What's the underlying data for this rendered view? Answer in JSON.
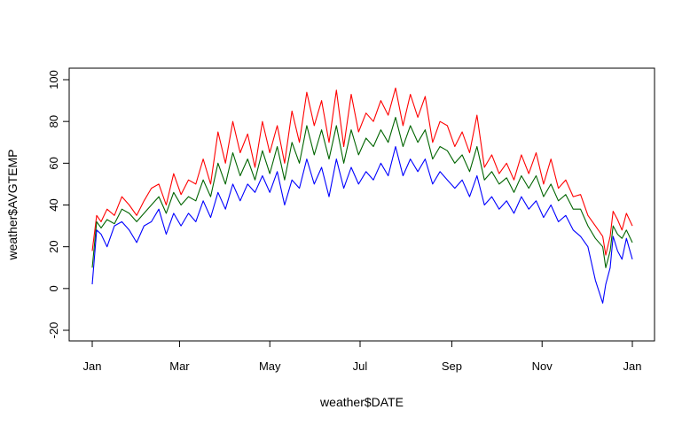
{
  "chart_data": {
    "type": "line",
    "title": "",
    "xlabel": "weather$DATE",
    "ylabel": "weather$AVGTEMP",
    "x_ticks": [
      "Jan",
      "Mar",
      "May",
      "Jul",
      "Sep",
      "Nov",
      "Jan"
    ],
    "x_tick_days": [
      0,
      59,
      120,
      181,
      243,
      304,
      365
    ],
    "y_ticks": [
      -20,
      0,
      20,
      40,
      60,
      80,
      100
    ],
    "ylim": [
      -25,
      105
    ],
    "xlim": [
      0,
      365
    ],
    "grid": false,
    "legend": "none",
    "series": [
      {
        "color": "#ff0000",
        "x_days": [
          0,
          3,
          6,
          10,
          15,
          20,
          25,
          30,
          35,
          40,
          45,
          50,
          55,
          60,
          65,
          70,
          75,
          80,
          85,
          90,
          95,
          100,
          105,
          110,
          115,
          120,
          125,
          130,
          135,
          140,
          145,
          150,
          155,
          160,
          165,
          170,
          175,
          180,
          185,
          190,
          195,
          200,
          205,
          210,
          215,
          220,
          225,
          230,
          235,
          240,
          245,
          250,
          255,
          260,
          265,
          270,
          275,
          280,
          285,
          290,
          295,
          300,
          305,
          310,
          315,
          320,
          325,
          330,
          335,
          340,
          345,
          347,
          350,
          352,
          355,
          358,
          361,
          365
        ],
        "values": [
          18,
          35,
          32,
          38,
          35,
          44,
          40,
          35,
          42,
          48,
          50,
          40,
          55,
          45,
          52,
          50,
          62,
          50,
          75,
          60,
          80,
          65,
          74,
          58,
          80,
          65,
          78,
          60,
          85,
          70,
          94,
          78,
          90,
          70,
          95,
          68,
          93,
          75,
          84,
          80,
          90,
          83,
          96,
          78,
          93,
          82,
          92,
          70,
          80,
          78,
          68,
          75,
          65,
          83,
          58,
          64,
          55,
          60,
          52,
          64,
          55,
          65,
          50,
          62,
          48,
          52,
          44,
          45,
          35,
          30,
          25,
          16,
          25,
          37,
          33,
          28,
          36,
          30
        ]
      },
      {
        "color": "#006400",
        "x_days": [
          0,
          3,
          6,
          10,
          15,
          20,
          25,
          30,
          35,
          40,
          45,
          50,
          55,
          60,
          65,
          70,
          75,
          80,
          85,
          90,
          95,
          100,
          105,
          110,
          115,
          120,
          125,
          130,
          135,
          140,
          145,
          150,
          155,
          160,
          165,
          170,
          175,
          180,
          185,
          190,
          195,
          200,
          205,
          210,
          215,
          220,
          225,
          230,
          235,
          240,
          245,
          250,
          255,
          260,
          265,
          270,
          275,
          280,
          285,
          290,
          295,
          300,
          305,
          310,
          315,
          320,
          325,
          330,
          335,
          340,
          345,
          347,
          350,
          352,
          355,
          358,
          361,
          365
        ],
        "values": [
          10,
          32,
          29,
          33,
          31,
          38,
          36,
          32,
          36,
          40,
          44,
          36,
          46,
          40,
          44,
          42,
          52,
          44,
          60,
          50,
          65,
          54,
          62,
          52,
          66,
          55,
          68,
          52,
          70,
          60,
          78,
          64,
          76,
          62,
          78,
          60,
          76,
          64,
          72,
          68,
          76,
          70,
          82,
          68,
          78,
          70,
          76,
          62,
          68,
          66,
          60,
          64,
          56,
          68,
          52,
          56,
          50,
          53,
          46,
          54,
          48,
          54,
          44,
          50,
          42,
          45,
          38,
          38,
          30,
          24,
          20,
          10,
          18,
          30,
          26,
          24,
          28,
          22
        ]
      },
      {
        "color": "#0000ff",
        "x_days": [
          0,
          3,
          6,
          10,
          15,
          20,
          25,
          30,
          35,
          40,
          45,
          50,
          55,
          60,
          65,
          70,
          75,
          80,
          85,
          90,
          95,
          100,
          105,
          110,
          115,
          120,
          125,
          130,
          135,
          140,
          145,
          150,
          155,
          160,
          165,
          170,
          175,
          180,
          185,
          190,
          195,
          200,
          205,
          210,
          215,
          220,
          225,
          230,
          235,
          240,
          245,
          250,
          255,
          260,
          265,
          270,
          275,
          280,
          285,
          290,
          295,
          300,
          305,
          310,
          315,
          320,
          325,
          330,
          335,
          340,
          345,
          347,
          350,
          352,
          355,
          358,
          361,
          365
        ],
        "values": [
          2,
          28,
          26,
          20,
          30,
          32,
          28,
          22,
          30,
          32,
          38,
          26,
          36,
          30,
          36,
          32,
          42,
          34,
          46,
          38,
          50,
          42,
          50,
          46,
          54,
          46,
          56,
          40,
          52,
          48,
          62,
          50,
          58,
          44,
          62,
          48,
          58,
          50,
          56,
          52,
          60,
          54,
          68,
          54,
          62,
          56,
          62,
          50,
          56,
          52,
          48,
          52,
          44,
          54,
          40,
          44,
          38,
          42,
          36,
          44,
          38,
          42,
          34,
          40,
          32,
          35,
          28,
          25,
          20,
          4,
          -7,
          2,
          10,
          25,
          18,
          14,
          24,
          14
        ]
      }
    ]
  }
}
